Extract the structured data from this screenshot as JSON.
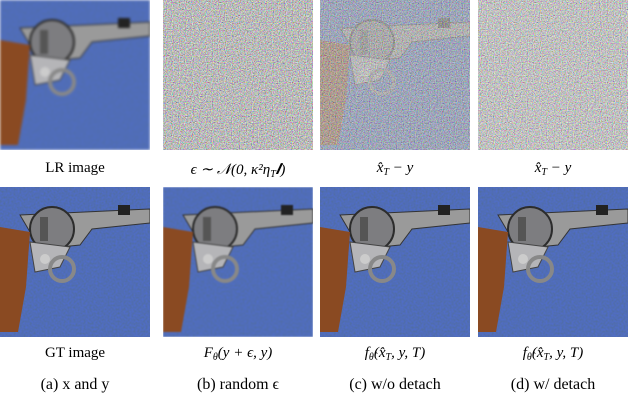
{
  "row1_captions": [
    [
      {
        "text": "LR image"
      }
    ],
    [
      {
        "text": "ϵ ∼ 𝒩(0, κ²η"
      },
      {
        "sub": "T"
      },
      {
        "text": "𝑰)"
      }
    ],
    [
      {
        "text": "x̂"
      },
      {
        "sub": "T"
      },
      {
        "text": " − y"
      }
    ],
    [
      {
        "text": "x̂"
      },
      {
        "sub": "T"
      },
      {
        "text": " − y"
      }
    ]
  ],
  "row2_captions": [
    [
      {
        "text": "GT image"
      }
    ],
    [
      {
        "text": "F"
      },
      {
        "sub": "θ"
      },
      {
        "text": "(y + ϵ, y)"
      }
    ],
    [
      {
        "text": "f"
      },
      {
        "sub": "θ̂"
      },
      {
        "text": "(x̂"
      },
      {
        "sub": "T"
      },
      {
        "text": ", y, T)"
      }
    ],
    [
      {
        "text": "f"
      },
      {
        "sub": "θ̂"
      },
      {
        "text": "(x̂"
      },
      {
        "sub": "T"
      },
      {
        "text": ", y, T)"
      }
    ]
  ],
  "subcaptions": [
    "(a) x and y",
    "(b) random ϵ",
    "(c) w/o detach",
    "(d) w/ detach"
  ]
}
